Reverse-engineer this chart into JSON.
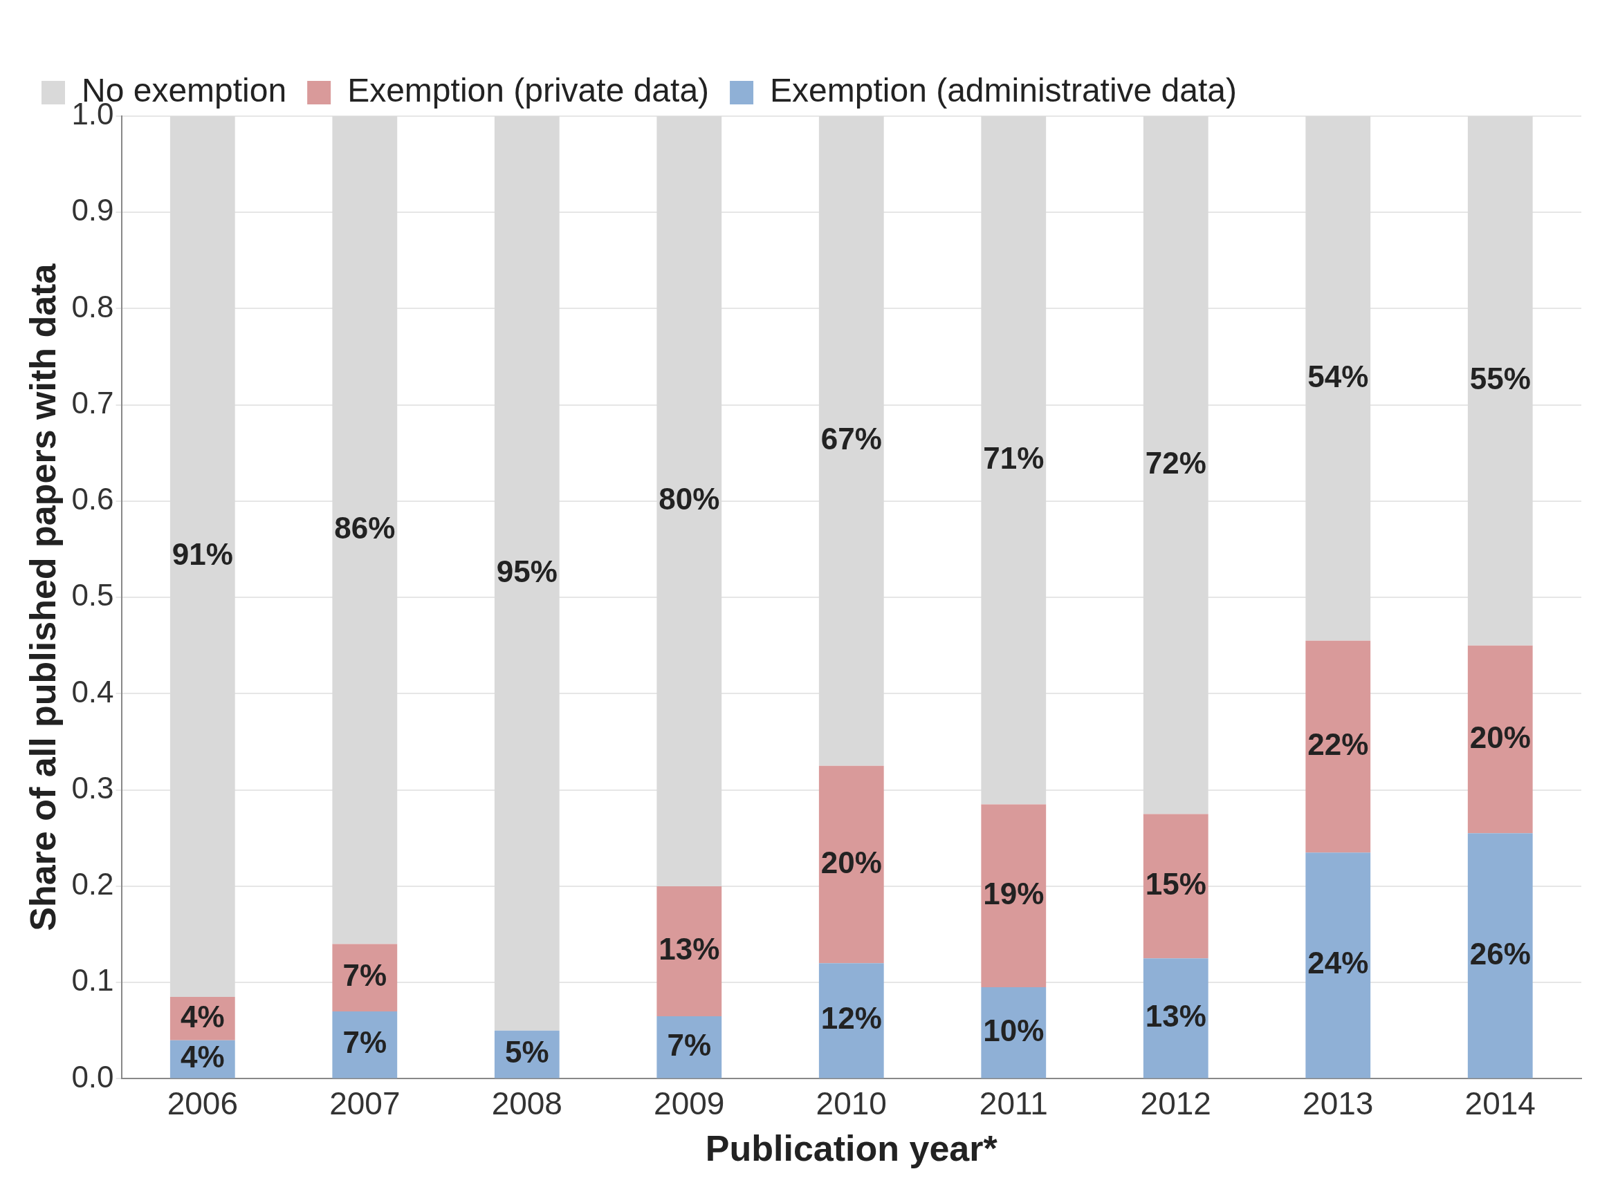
{
  "chart_data": {
    "type": "bar",
    "stacked": true,
    "xlabel": "Publication year*",
    "ylabel": "Share of all published papers with data",
    "categories": [
      "2006",
      "2007",
      "2008",
      "2009",
      "2010",
      "2011",
      "2012",
      "2013",
      "2014"
    ],
    "series": [
      {
        "name": "Exemption (administrative data)",
        "color": "#8fb0d6",
        "values": [
          0.04,
          0.07,
          0.05,
          0.065,
          0.12,
          0.095,
          0.125,
          0.235,
          0.255
        ],
        "value_labels": [
          "4%",
          "7%",
          "5%",
          "7%",
          "12%",
          "10%",
          "13%",
          "24%",
          "26%"
        ]
      },
      {
        "name": "Exemption (private data)",
        "color": "#d99a9a",
        "values": [
          0.045,
          0.07,
          null,
          0.135,
          0.205,
          0.19,
          0.15,
          0.22,
          0.195
        ],
        "value_labels": [
          "4%",
          "7%",
          null,
          "13%",
          "20%",
          "19%",
          "15%",
          "22%",
          "20%"
        ]
      },
      {
        "name": "No exemption",
        "color": "#d9d9d9",
        "values": [
          0.915,
          0.86,
          0.95,
          0.8,
          0.675,
          0.715,
          0.725,
          0.545,
          0.55
        ],
        "value_labels": [
          "91%",
          "86%",
          "95%",
          "80%",
          "67%",
          "71%",
          "72%",
          "54%",
          "55%"
        ]
      }
    ],
    "ylim": [
      0,
      1
    ],
    "yticks": [
      {
        "value": 0,
        "label": "0.0"
      },
      0.1,
      0.2,
      0.3,
      0.4,
      0.5,
      0.6,
      0.7,
      0.8,
      0.9,
      {
        "value": 1,
        "label": "1.0"
      }
    ],
    "grid": "y",
    "legend": "top left"
  }
}
